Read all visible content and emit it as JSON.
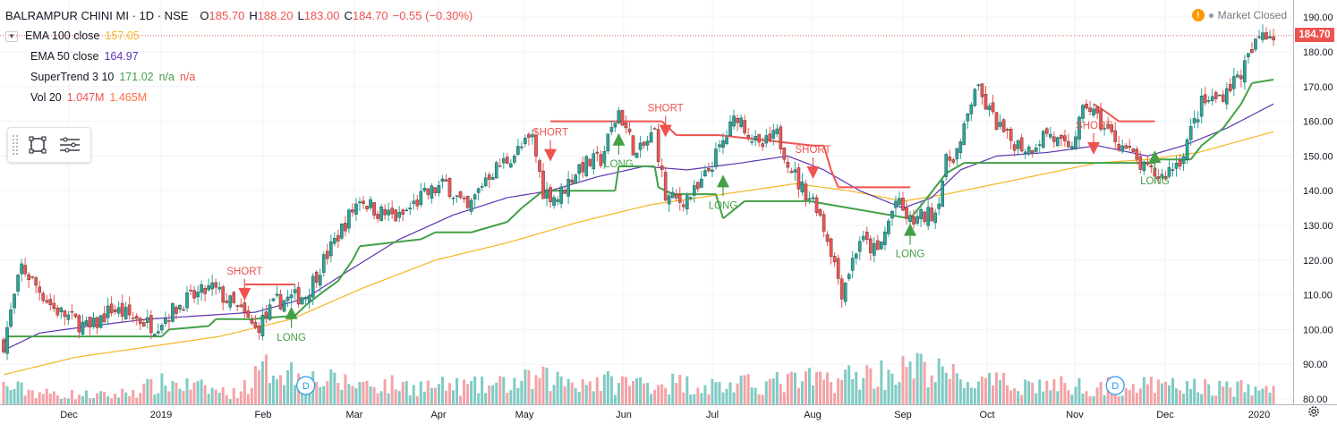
{
  "header": {
    "symbol": "BALRAMPUR CHINI MI · 1D · NSE",
    "o_label": "O",
    "o_value": "185.70",
    "h_label": "H",
    "h_value": "188.20",
    "l_label": "L",
    "l_value": "183.00",
    "c_label": "C",
    "c_value": "184.70",
    "change": "−0.55 (−0.30%)"
  },
  "indicators": [
    {
      "name": "EMA 100 close",
      "values": [
        "157.05"
      ],
      "color": "#f5b521"
    },
    {
      "name": "EMA 50 close",
      "values": [
        "164.97"
      ],
      "color": "#5e35b1"
    },
    {
      "name": "SuperTrend 3 10",
      "values": [
        "171.02",
        "n/a",
        "n/a"
      ],
      "colors": [
        "#43a047",
        "#43a047",
        "#ef5350"
      ]
    },
    {
      "name": "Vol 20",
      "values": [
        "1.047M",
        "1.465M"
      ],
      "colors": [
        "#ef5350",
        "#ff7043"
      ]
    }
  ],
  "status": {
    "warning_icon": "!",
    "text": "Market Closed"
  },
  "last_price": "184.70",
  "dividend_marker": "D",
  "colors": {
    "up": "#26a69a",
    "down": "#ef5350",
    "vol_up": "#80cbc4",
    "vol_down": "#f4a3a6",
    "st_up": "#43a047",
    "st_down": "#ef5350",
    "ema100": "#f5b521",
    "ema50": "#5e35b1"
  },
  "chart_data": {
    "type": "candlestick",
    "x_ticks": [
      "Dec",
      "2019",
      "Feb",
      "Mar",
      "Apr",
      "May",
      "Jun",
      "Jul",
      "Aug",
      "Sep",
      "Oct",
      "Nov",
      "Dec",
      "2020"
    ],
    "y_ticks": [
      80,
      90,
      100,
      110,
      120,
      130,
      140,
      150,
      160,
      170,
      180,
      190
    ],
    "ylim": [
      80,
      192
    ],
    "close_path": [
      [
        0,
        96
      ],
      [
        5,
        118
      ],
      [
        14,
        106
      ],
      [
        24,
        100
      ],
      [
        30,
        106
      ],
      [
        42,
        101
      ],
      [
        50,
        108
      ],
      [
        58,
        112
      ],
      [
        66,
        105
      ],
      [
        70,
        100
      ],
      [
        76,
        108
      ],
      [
        84,
        110
      ],
      [
        88,
        118
      ],
      [
        94,
        129
      ],
      [
        99,
        138
      ],
      [
        104,
        134
      ],
      [
        110,
        132
      ],
      [
        116,
        138
      ],
      [
        123,
        142
      ],
      [
        129,
        134
      ],
      [
        134,
        144
      ],
      [
        140,
        149
      ],
      [
        147,
        155
      ],
      [
        150,
        140
      ],
      [
        154,
        138
      ],
      [
        160,
        147
      ],
      [
        166,
        149
      ],
      [
        171,
        163
      ],
      [
        176,
        150
      ],
      [
        181,
        157
      ],
      [
        184,
        138
      ],
      [
        188,
        137
      ],
      [
        193,
        140
      ],
      [
        199,
        152
      ],
      [
        204,
        162
      ],
      [
        210,
        152
      ],
      [
        215,
        156
      ],
      [
        221,
        142
      ],
      [
        226,
        136
      ],
      [
        230,
        123
      ],
      [
        233,
        111
      ],
      [
        238,
        126
      ],
      [
        243,
        122
      ],
      [
        248,
        137
      ],
      [
        252,
        131
      ],
      [
        259,
        134
      ],
      [
        262,
        148
      ],
      [
        266,
        153
      ],
      [
        270,
        170
      ],
      [
        275,
        161
      ],
      [
        279,
        155
      ],
      [
        285,
        152
      ],
      [
        290,
        157
      ],
      [
        296,
        151
      ],
      [
        301,
        165
      ],
      [
        306,
        158
      ],
      [
        312,
        152
      ],
      [
        317,
        146
      ],
      [
        322,
        144
      ],
      [
        327,
        149
      ],
      [
        333,
        165
      ],
      [
        338,
        167
      ],
      [
        344,
        174
      ],
      [
        347,
        180
      ],
      [
        350,
        186
      ],
      [
        353,
        185
      ]
    ],
    "signals": [
      {
        "type": "SHORT",
        "x": 67,
        "price": 112
      },
      {
        "type": "LONG",
        "x": 80,
        "price": 103
      },
      {
        "type": "SHORT",
        "x": 152,
        "price": 152
      },
      {
        "type": "LONG",
        "x": 171,
        "price": 153
      },
      {
        "type": "SHORT",
        "x": 184,
        "price": 159
      },
      {
        "type": "LONG",
        "x": 200,
        "price": 141
      },
      {
        "type": "SHORT",
        "x": 225,
        "price": 147
      },
      {
        "type": "LONG",
        "x": 252,
        "price": 127
      },
      {
        "type": "SHORT",
        "x": 303,
        "price": 154
      },
      {
        "type": "LONG",
        "x": 320,
        "price": 148
      }
    ],
    "supertrend_down": [
      [
        67,
        113
      ],
      [
        81,
        113
      ],
      [
        152,
        160
      ],
      [
        170,
        160
      ],
      [
        183,
        160
      ],
      [
        184,
        159
      ],
      [
        187,
        156
      ],
      [
        199,
        156
      ],
      [
        225,
        153
      ],
      [
        228,
        153
      ],
      [
        230,
        146
      ],
      [
        232,
        141
      ],
      [
        252,
        141
      ],
      [
        303,
        165
      ],
      [
        306,
        163
      ],
      [
        310,
        160
      ],
      [
        320,
        160
      ]
    ],
    "supertrend_up": [
      [
        0,
        96
      ],
      [
        1,
        98
      ],
      [
        44,
        98
      ],
      [
        46,
        100
      ],
      [
        57,
        101
      ],
      [
        59,
        103
      ],
      [
        66,
        103
      ],
      [
        69,
        103
      ],
      [
        81,
        104
      ],
      [
        84,
        107
      ],
      [
        89,
        111
      ],
      [
        93,
        114
      ],
      [
        97,
        120
      ],
      [
        99,
        124
      ],
      [
        116,
        126
      ],
      [
        120,
        128
      ],
      [
        130,
        128
      ],
      [
        140,
        131
      ],
      [
        144,
        135
      ],
      [
        150,
        140
      ],
      [
        170,
        140
      ],
      [
        171,
        147
      ],
      [
        181,
        147
      ],
      [
        182,
        141
      ],
      [
        186,
        139
      ],
      [
        198,
        139
      ],
      [
        200,
        132
      ],
      [
        206,
        137
      ],
      [
        224,
        137
      ],
      [
        252,
        132
      ],
      [
        256,
        137
      ],
      [
        262,
        145
      ],
      [
        267,
        148
      ],
      [
        289,
        148
      ],
      [
        303,
        148
      ],
      [
        320,
        148
      ],
      [
        321,
        149
      ],
      [
        330,
        149
      ],
      [
        333,
        153
      ],
      [
        339,
        158
      ],
      [
        344,
        165
      ],
      [
        347,
        171
      ],
      [
        353,
        172
      ]
    ],
    "ema50_path": [
      [
        0,
        94
      ],
      [
        10,
        99
      ],
      [
        24,
        101
      ],
      [
        40,
        103
      ],
      [
        55,
        104
      ],
      [
        70,
        105
      ],
      [
        84,
        109
      ],
      [
        96,
        117
      ],
      [
        110,
        126
      ],
      [
        125,
        133
      ],
      [
        140,
        138
      ],
      [
        152,
        140
      ],
      [
        165,
        144
      ],
      [
        178,
        147
      ],
      [
        190,
        146
      ],
      [
        205,
        148
      ],
      [
        218,
        150
      ],
      [
        228,
        146
      ],
      [
        238,
        140
      ],
      [
        250,
        135
      ],
      [
        258,
        138
      ],
      [
        266,
        146
      ],
      [
        276,
        150
      ],
      [
        290,
        151
      ],
      [
        304,
        153
      ],
      [
        318,
        150
      ],
      [
        328,
        153
      ],
      [
        340,
        158
      ],
      [
        353,
        165
      ]
    ],
    "ema100_path": [
      [
        0,
        87
      ],
      [
        20,
        92
      ],
      [
        40,
        95
      ],
      [
        60,
        98
      ],
      [
        80,
        103
      ],
      [
        100,
        112
      ],
      [
        120,
        120
      ],
      [
        140,
        125
      ],
      [
        160,
        131
      ],
      [
        180,
        136
      ],
      [
        200,
        139
      ],
      [
        220,
        142
      ],
      [
        235,
        140
      ],
      [
        250,
        137
      ],
      [
        262,
        139
      ],
      [
        276,
        142
      ],
      [
        290,
        145
      ],
      [
        304,
        148
      ],
      [
        318,
        149
      ],
      [
        332,
        151
      ],
      [
        353,
        157
      ]
    ],
    "volume_level": [
      [
        0,
        0.25
      ],
      [
        12,
        0.15
      ],
      [
        30,
        0.12
      ],
      [
        46,
        0.3
      ],
      [
        64,
        0.15
      ],
      [
        75,
        0.55
      ],
      [
        85,
        0.35
      ],
      [
        95,
        0.3
      ],
      [
        115,
        0.25
      ],
      [
        135,
        0.25
      ],
      [
        150,
        0.35
      ],
      [
        170,
        0.3
      ],
      [
        185,
        0.3
      ],
      [
        200,
        0.25
      ],
      [
        230,
        0.35
      ],
      [
        255,
        0.5
      ],
      [
        270,
        0.3
      ],
      [
        300,
        0.25
      ],
      [
        330,
        0.25
      ],
      [
        353,
        0.2
      ]
    ],
    "dividends": [
      84,
      309
    ]
  }
}
